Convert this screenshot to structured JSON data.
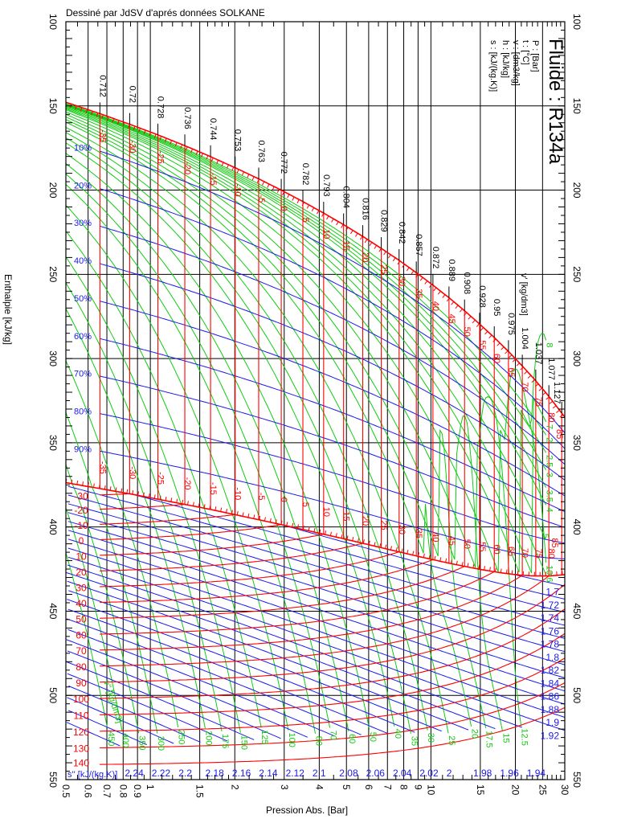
{
  "header": {
    "credit": "Dessiné par JdSV d'aprés données SOLKANE"
  },
  "legend": {
    "title": "Fluide : R134a",
    "units": [
      "P : [Bar]",
      "t : [°C]",
      "v : [dm3/kg]",
      "h : [kJ/kg]",
      "s : [kJ/(kg.K)]"
    ]
  },
  "chart_data": {
    "type": "line",
    "title": "Fluide : R134a",
    "xlabel": "Pression Abs. [Bar]",
    "ylabel": "Enthalpie [kJ/kg]",
    "orientation": "rotated 90° clockwise: pressure horizontal, enthalpy vertical increasing downward",
    "x_scale": "log",
    "xlim": [
      0.5,
      30
    ],
    "ylim": [
      100,
      550
    ],
    "x_ticks": [
      0.5,
      0.6,
      0.7,
      0.8,
      0.9,
      1,
      1.5,
      2,
      3,
      4,
      5,
      6,
      7,
      8,
      9,
      10,
      15,
      20,
      25,
      30
    ],
    "y_ticks": [
      100,
      150,
      200,
      250,
      300,
      350,
      400,
      450,
      500,
      550
    ],
    "grid": true,
    "colors": {
      "isotherms": "#ff0000",
      "isochores": "#11cc11",
      "isentropes": "#1a1aee",
      "quality": "#1a1aee",
      "grid": "#000000"
    },
    "saturation": {
      "t": [
        -40,
        -35,
        -30,
        -25,
        -20,
        -15,
        -10,
        -5,
        0,
        5,
        10,
        15,
        20,
        25,
        30,
        35,
        40,
        45,
        50,
        55,
        60,
        65,
        70,
        75,
        80,
        85
      ],
      "p": [
        0.512,
        0.661,
        0.844,
        1.064,
        1.327,
        1.639,
        2.006,
        2.433,
        2.928,
        3.497,
        4.146,
        4.884,
        5.717,
        6.654,
        7.702,
        8.87,
        10.166,
        11.599,
        13.179,
        14.915,
        16.818,
        18.898,
        21.168,
        23.64,
        26.33,
        29.26
      ],
      "h_liquid": [
        148.4,
        154.6,
        160.9,
        167.2,
        173.6,
        180.1,
        186.7,
        193.3,
        200.0,
        206.8,
        213.6,
        220.5,
        227.5,
        234.6,
        241.7,
        249.0,
        256.4,
        263.9,
        271.6,
        279.5,
        287.5,
        295.8,
        304.4,
        313.2,
        322.5,
        332.4
      ],
      "h_vapor": [
        374.0,
        377.2,
        380.3,
        383.5,
        386.6,
        389.6,
        392.7,
        395.7,
        398.6,
        401.5,
        404.3,
        407.0,
        409.7,
        412.3,
        414.8,
        417.2,
        419.4,
        421.5,
        423.4,
        425.1,
        426.6,
        427.8,
        428.7,
        429.1,
        429.1,
        428.5
      ]
    },
    "two_phase_isotherms": [
      -35,
      -30,
      -25,
      -20,
      -15,
      -10,
      -5,
      0,
      5,
      10,
      15,
      20,
      25,
      30,
      35,
      40,
      45,
      50,
      55,
      60,
      65,
      70,
      75,
      80,
      85
    ],
    "liquid_volume": {
      "label": "v' [kg/dm3]",
      "values": [
        "0.712",
        "0.72",
        "0.728",
        "0.736",
        "0.744",
        "0.753",
        "0.763",
        "0.772",
        "0.782",
        "0.793",
        "0.804",
        "0.816",
        "0.829",
        "0.842",
        "0.857",
        "0.872",
        "0.889",
        "0.908",
        "0.928",
        "0.95",
        "0.975",
        "1.004",
        "1.037",
        "1.077",
        "1.127"
      ]
    },
    "quality_lines": [
      "10%",
      "20%",
      "30%",
      "40%",
      "50%",
      "60%",
      "70%",
      "80%",
      "90%"
    ],
    "superheated_isotherms": [
      -30,
      -20,
      -10,
      0,
      10,
      20,
      30,
      40,
      50,
      60,
      70,
      80,
      90,
      100,
      110,
      120,
      130,
      140
    ],
    "isochores": {
      "label": "v'' [kg/dm3]",
      "values": [
        450,
        400,
        350,
        300,
        250,
        200,
        175,
        150,
        125,
        100,
        80,
        70,
        60,
        50,
        40,
        35,
        30,
        25,
        20,
        17.5,
        15,
        12.5,
        10,
        8,
        7,
        6,
        5,
        4,
        3.5,
        3,
        2.5,
        2
      ]
    },
    "isentropes": {
      "label": "s'' [kJ/(kg.K)]",
      "values": [
        1.7,
        1.72,
        1.74,
        1.76,
        1.78,
        1.8,
        1.82,
        1.84,
        1.86,
        1.88,
        1.9,
        1.92,
        1.94,
        1.96,
        1.98,
        2,
        2.02,
        2.04,
        2.06,
        2.08,
        2.1,
        2.12,
        2.14,
        2.16,
        2.18,
        2.2,
        2.22,
        2.24
      ]
    }
  }
}
